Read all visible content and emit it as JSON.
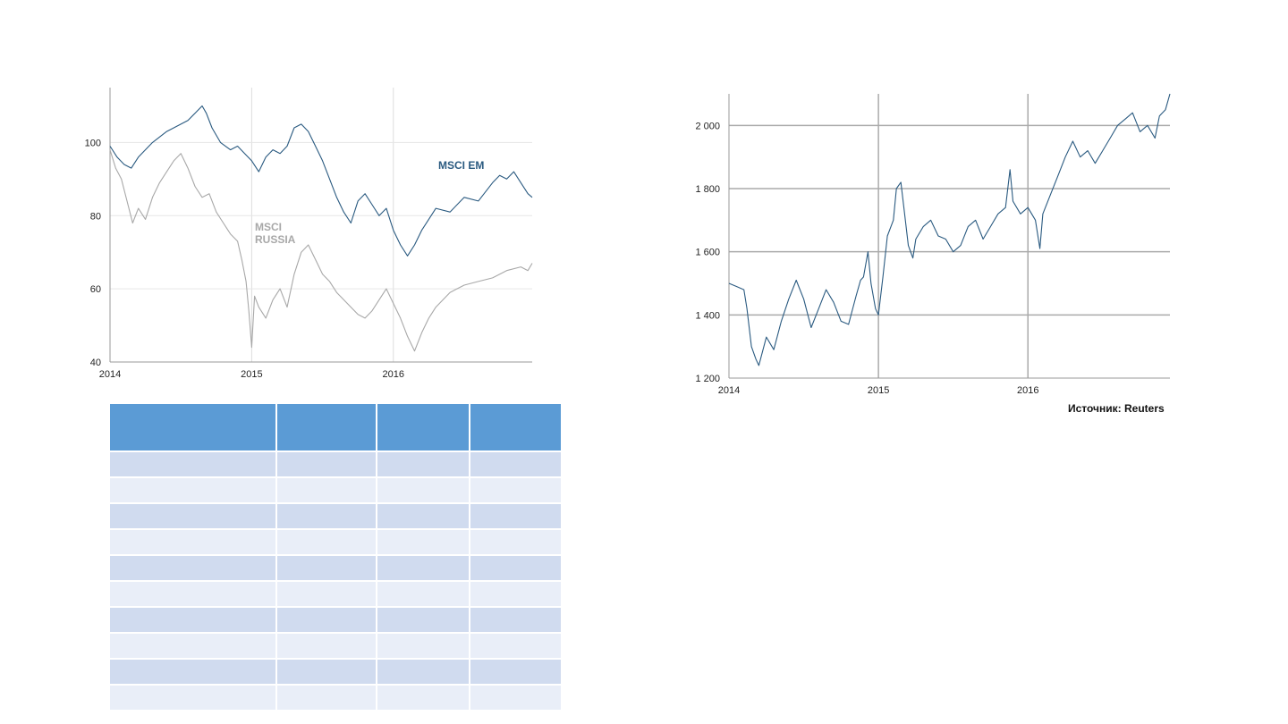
{
  "chart_data": [
    {
      "type": "line",
      "x_ticks": [
        "2014",
        "2015",
        "2016"
      ],
      "y_ticks": [
        "40",
        "60",
        "80",
        "100"
      ],
      "xlim": [
        2014.0,
        2016.98
      ],
      "ylim": [
        40,
        115
      ],
      "grid": true,
      "series": [
        {
          "name": "MSCI EM",
          "color": "#2a5a80",
          "x": [
            2014.0,
            2014.05,
            2014.1,
            2014.15,
            2014.2,
            2014.3,
            2014.4,
            2014.5,
            2014.55,
            2014.6,
            2014.65,
            2014.68,
            2014.72,
            2014.78,
            2014.85,
            2014.9,
            2014.95,
            2015.0,
            2015.05,
            2015.1,
            2015.15,
            2015.2,
            2015.25,
            2015.3,
            2015.35,
            2015.4,
            2015.45,
            2015.5,
            2015.55,
            2015.6,
            2015.65,
            2015.7,
            2015.75,
            2015.8,
            2015.85,
            2015.9,
            2015.95,
            2016.0,
            2016.05,
            2016.1,
            2016.15,
            2016.2,
            2016.3,
            2016.4,
            2016.5,
            2016.6,
            2016.7,
            2016.75,
            2016.8,
            2016.85,
            2016.9,
            2016.95,
            2016.98
          ],
          "y": [
            99,
            96,
            94,
            93,
            96,
            100,
            103,
            105,
            106,
            108,
            110,
            108,
            104,
            100,
            98,
            99,
            97,
            95,
            92,
            96,
            98,
            97,
            99,
            104,
            105,
            103,
            99,
            95,
            90,
            85,
            81,
            78,
            84,
            86,
            83,
            80,
            82,
            76,
            72,
            69,
            72,
            76,
            82,
            81,
            85,
            84,
            89,
            91,
            90,
            92,
            89,
            86,
            85
          ]
        },
        {
          "name": "MSCI RUSSIA",
          "color": "#a8a8a8",
          "x": [
            2014.0,
            2014.04,
            2014.08,
            2014.12,
            2014.16,
            2014.2,
            2014.25,
            2014.3,
            2014.35,
            2014.4,
            2014.45,
            2014.5,
            2014.55,
            2014.6,
            2014.65,
            2014.7,
            2014.75,
            2014.8,
            2014.85,
            2014.9,
            2014.93,
            2014.96,
            2014.98,
            2015.0,
            2015.02,
            2015.05,
            2015.1,
            2015.15,
            2015.2,
            2015.25,
            2015.3,
            2015.35,
            2015.4,
            2015.45,
            2015.5,
            2015.55,
            2015.6,
            2015.65,
            2015.7,
            2015.75,
            2015.8,
            2015.85,
            2015.9,
            2015.95,
            2016.0,
            2016.05,
            2016.1,
            2016.15,
            2016.2,
            2016.25,
            2016.3,
            2016.4,
            2016.5,
            2016.6,
            2016.7,
            2016.8,
            2016.9,
            2016.95,
            2016.98
          ],
          "y": [
            98,
            93,
            90,
            84,
            78,
            82,
            79,
            85,
            89,
            92,
            95,
            97,
            93,
            88,
            85,
            86,
            81,
            78,
            75,
            73,
            68,
            62,
            54,
            44,
            58,
            55,
            52,
            57,
            60,
            55,
            64,
            70,
            72,
            68,
            64,
            62,
            59,
            57,
            55,
            53,
            52,
            54,
            57,
            60,
            56,
            52,
            47,
            43,
            48,
            52,
            55,
            59,
            61,
            62,
            63,
            65,
            66,
            65,
            67
          ]
        }
      ]
    },
    {
      "type": "line",
      "x_ticks": [
        "2014",
        "2015",
        "2016"
      ],
      "y_ticks": [
        "1 200",
        "1 400",
        "1 600",
        "1 800",
        "2 000"
      ],
      "xlim": [
        2014.0,
        2016.95
      ],
      "ylim": [
        1200,
        2100
      ],
      "grid": true,
      "series": [
        {
          "color": "#2a5a80",
          "x": [
            2014.0,
            2014.05,
            2014.1,
            2014.12,
            2014.15,
            2014.18,
            2014.2,
            2014.25,
            2014.3,
            2014.35,
            2014.4,
            2014.45,
            2014.5,
            2014.55,
            2014.6,
            2014.65,
            2014.7,
            2014.75,
            2014.8,
            2014.85,
            2014.88,
            2014.9,
            2014.93,
            2014.95,
            2014.98,
            2015.0,
            2015.03,
            2015.06,
            2015.1,
            2015.12,
            2015.15,
            2015.18,
            2015.2,
            2015.23,
            2015.25,
            2015.3,
            2015.35,
            2015.4,
            2015.45,
            2015.5,
            2015.55,
            2015.6,
            2015.65,
            2015.7,
            2015.75,
            2015.8,
            2015.85,
            2015.88,
            2015.9,
            2015.95,
            2016.0,
            2016.05,
            2016.08,
            2016.1,
            2016.15,
            2016.2,
            2016.25,
            2016.3,
            2016.35,
            2016.4,
            2016.45,
            2016.5,
            2016.55,
            2016.6,
            2016.65,
            2016.7,
            2016.75,
            2016.8,
            2016.85,
            2016.88,
            2016.92,
            2016.95
          ],
          "y": [
            1500,
            1490,
            1480,
            1420,
            1300,
            1260,
            1240,
            1330,
            1290,
            1380,
            1450,
            1510,
            1450,
            1360,
            1420,
            1480,
            1440,
            1380,
            1370,
            1460,
            1510,
            1520,
            1600,
            1500,
            1420,
            1400,
            1520,
            1650,
            1700,
            1800,
            1820,
            1700,
            1620,
            1580,
            1640,
            1680,
            1700,
            1650,
            1640,
            1600,
            1620,
            1680,
            1700,
            1640,
            1680,
            1720,
            1740,
            1860,
            1760,
            1720,
            1740,
            1700,
            1610,
            1720,
            1780,
            1840,
            1900,
            1950,
            1900,
            1920,
            1880,
            1920,
            1960,
            2000,
            2020,
            2040,
            1980,
            2000,
            1960,
            2030,
            2050,
            2100
          ]
        }
      ]
    }
  ],
  "source_note": "Источник: Reuters",
  "table": {
    "columns": 4,
    "body_rows": 10,
    "header_color": "#5b9bd5",
    "row_colors": [
      "#d0dbef",
      "#e9eef8"
    ]
  }
}
